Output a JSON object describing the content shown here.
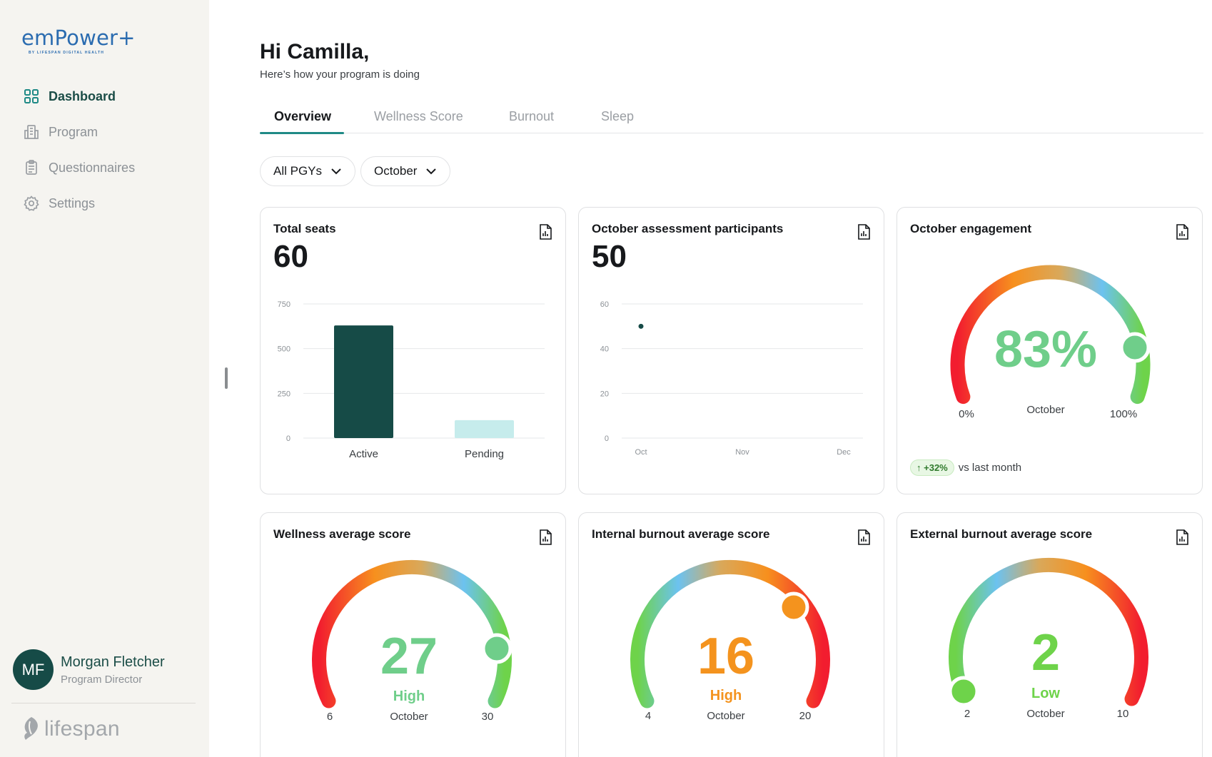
{
  "brand": {
    "name": "emPower+",
    "tagline": "BY LIFESPAN DIGITAL HEALTH",
    "footer_logo": "lifespan"
  },
  "nav": {
    "items": [
      {
        "label": "Dashboard",
        "icon": "grid-icon",
        "active": true
      },
      {
        "label": "Program",
        "icon": "building-icon",
        "active": false
      },
      {
        "label": "Questionnaires",
        "icon": "clipboard-icon",
        "active": false
      },
      {
        "label": "Settings",
        "icon": "gear-icon",
        "active": false
      }
    ]
  },
  "user": {
    "initials": "MF",
    "name": "Morgan Fletcher",
    "role": "Program Director"
  },
  "header": {
    "greeting": "Hi Camilla,",
    "subtitle": "Here’s how your program is doing"
  },
  "tabs": [
    {
      "label": "Overview",
      "active": true
    },
    {
      "label": "Wellness Score",
      "active": false
    },
    {
      "label": "Burnout",
      "active": false
    },
    {
      "label": "Sleep",
      "active": false
    }
  ],
  "filters": {
    "pgy": "All PGYs",
    "month": "October"
  },
  "colors": {
    "accent": "#1f8a86",
    "dark_teal": "#164b47",
    "good": "#6fce8a",
    "warn": "#f4931e"
  },
  "cards": {
    "total_seats": {
      "title": "Total seats",
      "value": "60"
    },
    "participants": {
      "title": "October assessment participants",
      "value": "50"
    },
    "engagement": {
      "title": "October engagement",
      "value": "83%",
      "fraction": 0.83,
      "min_label": "0%",
      "max_label": "100%",
      "period": "October",
      "delta": "+32%",
      "delta_text": "vs last month"
    },
    "wellness": {
      "title": "Wellness average score",
      "value": "27",
      "level": "High",
      "period": "October",
      "min": "6",
      "max": "30"
    },
    "internal_burnout": {
      "title": "Internal burnout average score",
      "value": "16",
      "level": "High",
      "period": "October",
      "min": "4",
      "max": "20"
    },
    "external_burnout": {
      "title": "External burnout average score",
      "value": "2",
      "level": "Low",
      "period": "October",
      "min": "2",
      "max": "10"
    }
  },
  "chart_data": [
    {
      "type": "bar",
      "categories": [
        "Active",
        "Pending"
      ],
      "values": [
        630,
        100
      ],
      "yticks": [
        "0",
        "250",
        "500",
        "750"
      ],
      "ylim": [
        0,
        750
      ],
      "colors": [
        "#164b47",
        "#c6ecec"
      ],
      "grid": true
    },
    {
      "type": "scatter",
      "categories": [
        "Oct",
        "Nov",
        "Dec"
      ],
      "values": [
        50
      ],
      "yticks": [
        "0",
        "20",
        "40",
        "60"
      ],
      "ylim": [
        0,
        60
      ],
      "colors": [
        "#164b47"
      ],
      "grid": true
    }
  ]
}
